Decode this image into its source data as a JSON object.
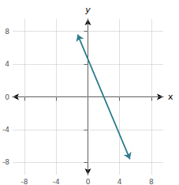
{
  "chart_data": {
    "type": "line",
    "xlabel": "x",
    "ylabel": "y",
    "x": [
      -1.3,
      5.3
    ],
    "values": [
      7.6,
      -7.6
    ],
    "color": "#2e7d8c",
    "xlim": [
      -9.5,
      9.5
    ],
    "ylim": [
      -9.5,
      9.5
    ],
    "xticks": [
      -8,
      -4,
      0,
      4,
      8
    ],
    "yticks": [
      -8,
      -4,
      0,
      4,
      8
    ],
    "grid": true
  }
}
